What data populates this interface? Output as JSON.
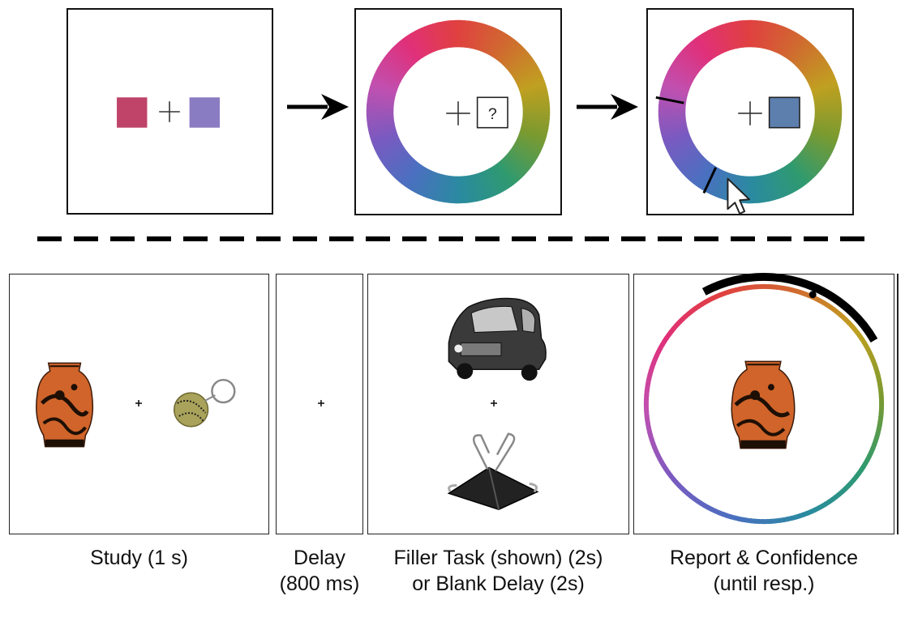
{
  "colors": {
    "study_square_left": "#c0446a",
    "study_square_right": "#8a7cc2",
    "report_swatch": "#5d7fae",
    "wheel": [
      "#c0a020",
      "#7a9a30",
      "#2f9a70",
      "#2a8aa0",
      "#4a70c0",
      "#7a5ac0",
      "#c050b0",
      "#e0307a",
      "#e04040",
      "#d06a30"
    ]
  },
  "top_row": {
    "probe_symbol": "?",
    "cursor_icon": "mouse-pointer-icon"
  },
  "captions": {
    "study": "Study (1 s)",
    "delay_line1": "Delay",
    "delay_line2": "(800 ms)",
    "filler_line1": "Filler Task (shown) (2s)",
    "filler_line2": "or Blank Delay (2s)",
    "report_line1": "Report & Confidence",
    "report_line2": "(until resp.)"
  },
  "icons": {
    "study_left_item": "vase-icon",
    "study_right_item": "baseball-keychain-icon",
    "filler_top_item": "car-icon",
    "filler_bottom_item": "binder-clip-icon",
    "report_probe_item": "vase-icon"
  }
}
